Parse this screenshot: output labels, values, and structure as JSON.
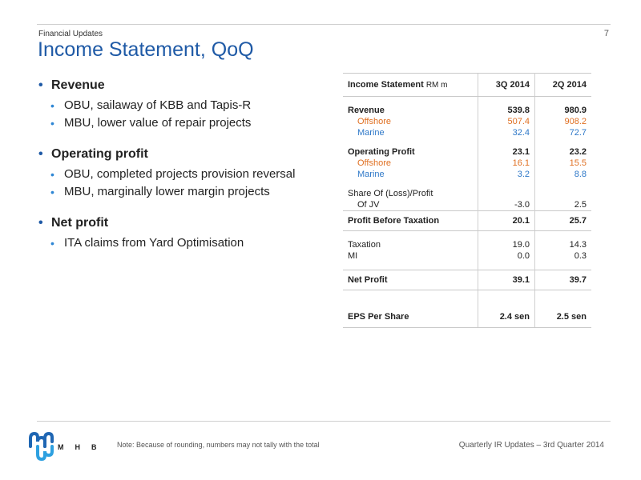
{
  "header": {
    "section": "Financial Updates",
    "page_number": "7",
    "title": "Income Statement, QoQ"
  },
  "bullets": [
    {
      "heading": "Revenue",
      "items": [
        "OBU, sailaway of KBB and Tapis-R",
        "MBU, lower value of repair projects"
      ]
    },
    {
      "heading": "Operating profit",
      "items": [
        "OBU, completed projects provision reversal",
        "MBU, marginally lower margin projects"
      ]
    },
    {
      "heading": "Net profit",
      "items": [
        "ITA claims from Yard Optimisation"
      ]
    }
  ],
  "table": {
    "title": "Income Statement",
    "unit": "RM m",
    "columns": [
      "3Q 2014",
      "2Q 2014"
    ],
    "rows": {
      "revenue": {
        "label": "Revenue",
        "values": [
          "539.8",
          "980.9"
        ]
      },
      "revenue_offshore": {
        "label": "Offshore",
        "values": [
          "507.4",
          "908.2"
        ]
      },
      "revenue_marine": {
        "label": "Marine",
        "values": [
          "32.4",
          "72.7"
        ]
      },
      "operating_profit": {
        "label": "Operating Profit",
        "values": [
          "23.1",
          "23.2"
        ]
      },
      "op_offshore": {
        "label": "Offshore",
        "values": [
          "16.1",
          "15.5"
        ]
      },
      "op_marine": {
        "label": "Marine",
        "values": [
          "3.2",
          "8.8"
        ]
      },
      "share_jv_line1": {
        "label": "Share Of (Loss)/Profit"
      },
      "share_jv": {
        "label": "Of JV",
        "values": [
          "-3.0",
          "2.5"
        ]
      },
      "pbt": {
        "label": "Profit Before Taxation",
        "values": [
          "20.1",
          "25.7"
        ]
      },
      "taxation": {
        "label": "Taxation",
        "values": [
          "19.0",
          "14.3"
        ]
      },
      "mi": {
        "label": "MI",
        "values": [
          "0.0",
          "0.3"
        ]
      },
      "net_profit": {
        "label": "Net Profit",
        "values": [
          "39.1",
          "39.7"
        ]
      },
      "eps": {
        "label": "EPS Per Share",
        "values": [
          "2.4 sen",
          "2.5 sen"
        ]
      }
    }
  },
  "footer": {
    "logo_text": "MHB",
    "note": "Note: Because of rounding, numbers may not tally with the total",
    "right": "Quarterly IR Updates – 3rd Quarter 2014"
  },
  "colors": {
    "title": "#1f5aa6",
    "offshore": "#e07022",
    "marine": "#2e78c8",
    "bullet_sub": "#2e86d4"
  },
  "icons": [
    "mhb-logo-icon"
  ]
}
